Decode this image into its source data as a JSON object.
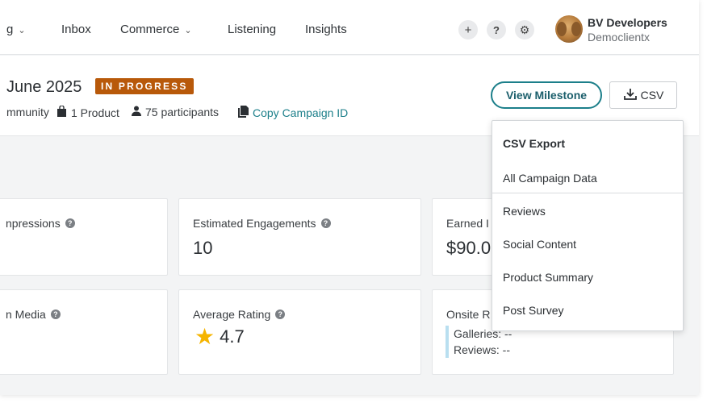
{
  "nav": {
    "items": [
      {
        "label": "g",
        "has_chevron": true
      },
      {
        "label": "Inbox",
        "has_chevron": false
      },
      {
        "label": "Commerce",
        "has_chevron": true
      },
      {
        "label": "Listening",
        "has_chevron": false
      },
      {
        "label": "Insights",
        "has_chevron": false
      }
    ],
    "icons": {
      "add": "+",
      "help": "?",
      "settings": "⚙"
    },
    "user": {
      "name": "BV Developers",
      "org": "Democlientx"
    }
  },
  "campaign": {
    "title": "June 2025",
    "status": "IN PROGRESS",
    "meta": {
      "community": "mmunity",
      "products": "1 Product",
      "participants": "75 participants",
      "copy_id": "Copy Campaign ID"
    },
    "view_milestone": "View Milestone",
    "csv": "CSV"
  },
  "cards": {
    "row1": [
      {
        "label": "npressions",
        "value": ""
      },
      {
        "label": "Estimated Engagements",
        "value": "10"
      },
      {
        "label": "Earned I",
        "value": "$90.0"
      }
    ],
    "row2": [
      {
        "label": "n Media",
        "value": ""
      },
      {
        "label": "Average Rating",
        "value": "4.7"
      },
      {
        "label": "Onsite R",
        "galleries": "Galleries: --",
        "reviews": "Reviews: --"
      }
    ]
  },
  "csv_dropdown": {
    "header": "CSV Export",
    "items": [
      "All Campaign Data",
      "Reviews",
      "Social Content",
      "Product Summary",
      "Post Survey"
    ]
  },
  "colors": {
    "accent": "#1c7f8a",
    "badge": "#b8590a",
    "star": "#f5b400"
  }
}
